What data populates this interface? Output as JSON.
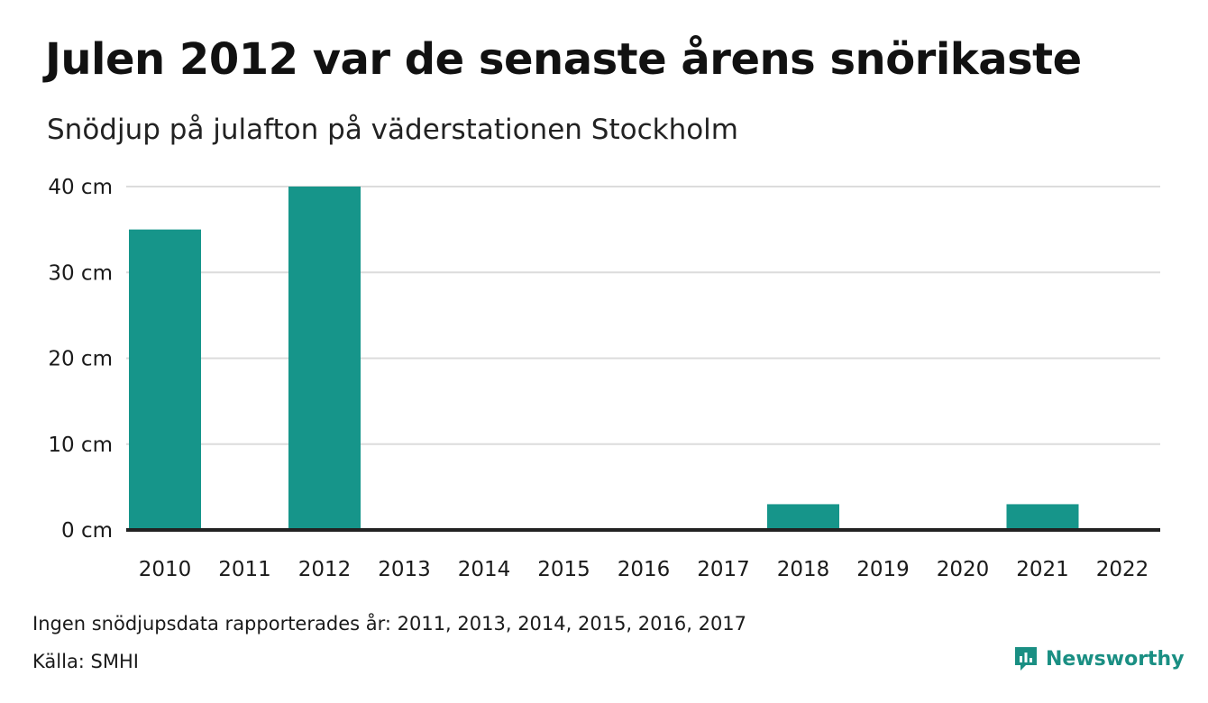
{
  "header": {
    "title": "Julen 2012 var de senaste årens snörikaste",
    "subtitle": "Snödjup på julafton på väderstationen Stockholm"
  },
  "chart_data": {
    "type": "bar",
    "title": "Julen 2012 var de senaste årens snörikaste",
    "subtitle": "Snödjup på julafton på väderstationen Stockholm",
    "categories": [
      "2010",
      "2011",
      "2012",
      "2013",
      "2014",
      "2015",
      "2016",
      "2017",
      "2018",
      "2019",
      "2020",
      "2021",
      "2022"
    ],
    "values": [
      35,
      null,
      40,
      null,
      null,
      null,
      null,
      null,
      3,
      0,
      0,
      3,
      0
    ],
    "ylim": [
      0,
      40
    ],
    "yticks": [
      0,
      10,
      20,
      30,
      40
    ],
    "ytick_labels": [
      "0 cm",
      "10 cm",
      "20 cm",
      "30 cm",
      "40 cm"
    ],
    "xlabel": "",
    "ylabel": "",
    "grid": true,
    "bar_color": "#16958a"
  },
  "footer": {
    "note": "Ingen snödjupsdata rapporterades år: 2011, 2013, 2014, 2015, 2016, 2017",
    "source": "Källa: SMHI",
    "brand": "Newsworthy",
    "brand_color": "#1a8f83",
    "brand_icon": "bar-chart-speech-icon"
  }
}
